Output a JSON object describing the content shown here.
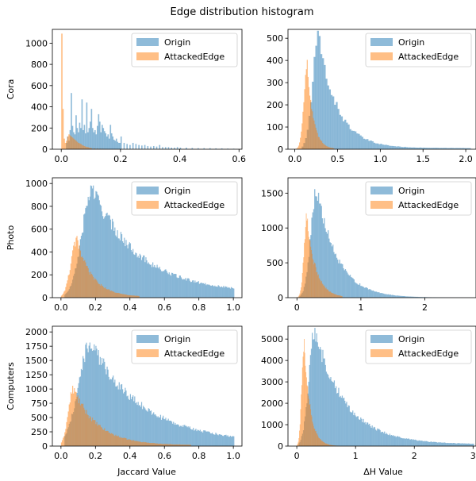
{
  "figure": {
    "title": "Edge distribution histogram",
    "xlabels": [
      "Jaccard Value",
      "ΔH Value"
    ],
    "row_labels": [
      "Cora",
      "Photo",
      "Computers"
    ]
  },
  "chart_data": [
    {
      "type": "histogram",
      "dataset": "Cora",
      "metric": "Jaccard",
      "ylabel": "Cora",
      "xlabel": "",
      "xlim": [
        -0.03,
        0.61
      ],
      "ylim": [
        0,
        1130
      ],
      "xticks": [
        0.0,
        0.2,
        0.4,
        0.6
      ],
      "xtick_labels": [
        "0.0",
        "0.2",
        "0.4",
        "0.6"
      ],
      "yticks": [
        0,
        200,
        400,
        600,
        800,
        1000
      ],
      "ytick_labels": [
        "0",
        "200",
        "400",
        "600",
        "800",
        "1000"
      ],
      "legend": "top-right",
      "grid": false,
      "series": [
        {
          "name": "Origin",
          "color": "#1f77b4",
          "alpha": 0.5,
          "bin_width": 0.004,
          "bins": [
            [
              0.016,
              60
            ],
            [
              0.02,
              120
            ],
            [
              0.024,
              80
            ],
            [
              0.028,
              180
            ],
            [
              0.032,
              530
            ],
            [
              0.036,
              220
            ],
            [
              0.04,
              160
            ],
            [
              0.044,
              140
            ],
            [
              0.048,
              320
            ],
            [
              0.052,
              200
            ],
            [
              0.056,
              160
            ],
            [
              0.06,
              250
            ],
            [
              0.064,
              200
            ],
            [
              0.068,
              470
            ],
            [
              0.072,
              180
            ],
            [
              0.076,
              230
            ],
            [
              0.08,
              150
            ],
            [
              0.084,
              440
            ],
            [
              0.088,
              160
            ],
            [
              0.092,
              200
            ],
            [
              0.096,
              260
            ],
            [
              0.1,
              380
            ],
            [
              0.104,
              200
            ],
            [
              0.108,
              160
            ],
            [
              0.112,
              180
            ],
            [
              0.116,
              140
            ],
            [
              0.12,
              220
            ],
            [
              0.124,
              330
            ],
            [
              0.128,
              260
            ],
            [
              0.132,
              160
            ],
            [
              0.136,
              230
            ],
            [
              0.14,
              200
            ],
            [
              0.144,
              170
            ],
            [
              0.148,
              150
            ],
            [
              0.152,
              120
            ],
            [
              0.156,
              140
            ],
            [
              0.16,
              100
            ],
            [
              0.164,
              230
            ],
            [
              0.168,
              150
            ],
            [
              0.172,
              120
            ],
            [
              0.176,
              90
            ],
            [
              0.18,
              80
            ],
            [
              0.184,
              100
            ],
            [
              0.188,
              70
            ],
            [
              0.192,
              60
            ],
            [
              0.196,
              60
            ],
            [
              0.2,
              120
            ],
            [
              0.21,
              60
            ],
            [
              0.22,
              50
            ],
            [
              0.23,
              40
            ],
            [
              0.24,
              60
            ],
            [
              0.25,
              50
            ],
            [
              0.26,
              40
            ],
            [
              0.27,
              35
            ],
            [
              0.28,
              40
            ],
            [
              0.29,
              30
            ],
            [
              0.3,
              25
            ],
            [
              0.31,
              30
            ],
            [
              0.32,
              25
            ],
            [
              0.33,
              40
            ],
            [
              0.34,
              20
            ],
            [
              0.35,
              20
            ],
            [
              0.36,
              20
            ],
            [
              0.37,
              15
            ],
            [
              0.38,
              15
            ],
            [
              0.39,
              20
            ],
            [
              0.4,
              15
            ],
            [
              0.42,
              15
            ],
            [
              0.44,
              12
            ],
            [
              0.46,
              10
            ],
            [
              0.48,
              10
            ],
            [
              0.5,
              10
            ],
            [
              0.52,
              8
            ],
            [
              0.54,
              8
            ],
            [
              0.56,
              6
            ],
            [
              0.58,
              5
            ]
          ]
        },
        {
          "name": "AttackedEdge",
          "color": "#ff7f0e",
          "alpha": 0.5,
          "bin_width": 0.004,
          "bins": [
            [
              0.0,
              1090
            ],
            [
              0.004,
              380
            ],
            [
              0.008,
              100
            ],
            [
              0.012,
              60
            ],
            [
              0.016,
              80
            ],
            [
              0.02,
              120
            ],
            [
              0.024,
              140
            ],
            [
              0.028,
              130
            ],
            [
              0.032,
              120
            ],
            [
              0.036,
              110
            ],
            [
              0.04,
              100
            ],
            [
              0.044,
              90
            ],
            [
              0.048,
              80
            ],
            [
              0.052,
              70
            ],
            [
              0.056,
              60
            ],
            [
              0.06,
              55
            ],
            [
              0.064,
              50
            ],
            [
              0.068,
              40
            ],
            [
              0.072,
              35
            ],
            [
              0.076,
              30
            ],
            [
              0.08,
              25
            ],
            [
              0.084,
              20
            ],
            [
              0.088,
              20
            ],
            [
              0.092,
              15
            ],
            [
              0.096,
              12
            ],
            [
              0.1,
              10
            ],
            [
              0.11,
              8
            ],
            [
              0.12,
              6
            ],
            [
              0.13,
              5
            ],
            [
              0.14,
              4
            ],
            [
              0.15,
              3
            ]
          ]
        }
      ]
    },
    {
      "type": "histogram",
      "dataset": "Cora",
      "metric": "ΔH",
      "ylabel": "",
      "xlabel": "",
      "xlim": [
        -0.08,
        2.12
      ],
      "ylim": [
        0,
        540
      ],
      "xticks": [
        0.0,
        0.5,
        1.0,
        1.5,
        2.0
      ],
      "xtick_labels": [
        "0.0",
        "0.5",
        "1.0",
        "1.5",
        "2.0"
      ],
      "yticks": [
        0,
        100,
        200,
        300,
        400,
        500
      ],
      "ytick_labels": [
        "0",
        "100",
        "200",
        "300",
        "400",
        "500"
      ],
      "legend": "top-right",
      "grid": false,
      "series": [
        {
          "name": "Origin",
          "color": "#1f77b4",
          "alpha": 0.5,
          "bin_width": 0.02,
          "curve": {
            "peak_x": 0.27,
            "peak_y": 500,
            "rise": 0.07,
            "decay": 0.22,
            "floor": 5,
            "start": 0.08,
            "end": 2.05
          }
        },
        {
          "name": "AttackedEdge",
          "color": "#ff7f0e",
          "alpha": 0.5,
          "bin_width": 0.01,
          "curve": {
            "peak_x": 0.14,
            "peak_y": 380,
            "rise": 0.04,
            "decay": 0.07,
            "floor": 0,
            "start": 0.0,
            "end": 0.45
          }
        }
      ]
    },
    {
      "type": "histogram",
      "dataset": "Photo",
      "metric": "Jaccard",
      "ylabel": "Photo",
      "xlabel": "",
      "xlim": [
        -0.05,
        1.05
      ],
      "ylim": [
        0,
        1050
      ],
      "xticks": [
        0.0,
        0.2,
        0.4,
        0.6,
        0.8,
        1.0
      ],
      "xtick_labels": [
        "0.0",
        "0.2",
        "0.4",
        "0.6",
        "0.8",
        "1.0"
      ],
      "yticks": [
        0,
        200,
        400,
        600,
        800,
        1000
      ],
      "ytick_labels": [
        "0",
        "200",
        "400",
        "600",
        "800",
        "1000"
      ],
      "legend": "top-right",
      "grid": false,
      "series": [
        {
          "name": "Origin",
          "color": "#1f77b4",
          "alpha": 0.5,
          "bin_width": 0.005,
          "curve": {
            "peak_x": 0.18,
            "peak_y": 950,
            "rise": 0.06,
            "decay": 0.27,
            "floor": 40,
            "start": 0.02,
            "end": 1.0
          }
        },
        {
          "name": "AttackedEdge",
          "color": "#ff7f0e",
          "alpha": 0.5,
          "bin_width": 0.005,
          "curve": {
            "peak_x": 0.09,
            "peak_y": 500,
            "rise": 0.035,
            "decay": 0.09,
            "floor": 5,
            "start": 0.0,
            "end": 0.45
          }
        }
      ]
    },
    {
      "type": "histogram",
      "dataset": "Photo",
      "metric": "ΔH",
      "ylabel": "",
      "xlabel": "",
      "xlim": [
        -0.14,
        2.8
      ],
      "ylim": [
        0,
        1720
      ],
      "xticks": [
        0,
        1,
        2
      ],
      "xtick_labels": [
        "0",
        "1",
        "2"
      ],
      "yticks": [
        0,
        500,
        1000,
        1500
      ],
      "ytick_labels": [
        "0",
        "500",
        "1000",
        "1500"
      ],
      "legend": "top-right",
      "grid": false,
      "series": [
        {
          "name": "Origin",
          "color": "#1f77b4",
          "alpha": 0.5,
          "bin_width": 0.015,
          "curve": {
            "peak_x": 0.3,
            "peak_y": 1560,
            "rise": 0.09,
            "decay": 0.32,
            "floor": 0,
            "start": 0.03,
            "end": 2.7
          }
        },
        {
          "name": "AttackedEdge",
          "color": "#ff7f0e",
          "alpha": 0.5,
          "bin_width": 0.01,
          "curve": {
            "peak_x": 0.15,
            "peak_y": 1140,
            "rise": 0.045,
            "decay": 0.14,
            "floor": 0,
            "start": 0.0,
            "end": 0.7
          }
        }
      ]
    },
    {
      "type": "histogram",
      "dataset": "Computers",
      "metric": "Jaccard",
      "ylabel": "Computers",
      "xlabel": "Jaccard Value",
      "xlim": [
        -0.05,
        1.05
      ],
      "ylim": [
        0,
        2100
      ],
      "xticks": [
        0.0,
        0.2,
        0.4,
        0.6,
        0.8,
        1.0
      ],
      "xtick_labels": [
        "0.0",
        "0.2",
        "0.4",
        "0.6",
        "0.8",
        "1.0"
      ],
      "yticks": [
        0,
        250,
        500,
        750,
        1000,
        1250,
        1500,
        1750,
        2000
      ],
      "ytick_labels": [
        "0",
        "250",
        "500",
        "750",
        "1000",
        "1250",
        "1500",
        "1750",
        "2000"
      ],
      "legend": "top-right",
      "grid": false,
      "series": [
        {
          "name": "Origin",
          "color": "#1f77b4",
          "alpha": 0.5,
          "bin_width": 0.005,
          "curve": {
            "peak_x": 0.17,
            "peak_y": 1800,
            "rise": 0.07,
            "decay": 0.3,
            "floor": 60,
            "start": 0.02,
            "end": 1.0
          }
        },
        {
          "name": "AttackedEdge",
          "color": "#ff7f0e",
          "alpha": 0.5,
          "bin_width": 0.005,
          "curve": {
            "peak_x": 0.07,
            "peak_y": 1000,
            "rise": 0.03,
            "decay": 0.14,
            "floor": 15,
            "start": 0.0,
            "end": 0.75
          }
        }
      ]
    },
    {
      "type": "histogram",
      "dataset": "Computers",
      "metric": "ΔH",
      "ylabel": "",
      "xlabel": "ΔH Value",
      "xlim": [
        -0.15,
        3.05
      ],
      "ylim": [
        0,
        5600
      ],
      "xticks": [
        0,
        1,
        2,
        3
      ],
      "xtick_labels": [
        "0",
        "1",
        "2",
        "3"
      ],
      "yticks": [
        0,
        1000,
        2000,
        3000,
        4000,
        5000
      ],
      "ytick_labels": [
        "0",
        "1000",
        "2000",
        "3000",
        "4000",
        "5000"
      ],
      "legend": "top-right",
      "grid": false,
      "series": [
        {
          "name": "Origin",
          "color": "#1f77b4",
          "alpha": 0.5,
          "bin_width": 0.015,
          "curve": {
            "peak_x": 0.3,
            "peak_y": 5400,
            "rise": 0.1,
            "decay": 0.52,
            "floor": 80,
            "start": 0.03,
            "end": 3.0
          }
        },
        {
          "name": "AttackedEdge",
          "color": "#ff7f0e",
          "alpha": 0.5,
          "bin_width": 0.01,
          "curve": {
            "peak_x": 0.12,
            "peak_y": 4900,
            "rise": 0.04,
            "decay": 0.1,
            "floor": 0,
            "start": 0.0,
            "end": 0.7
          }
        }
      ]
    }
  ]
}
